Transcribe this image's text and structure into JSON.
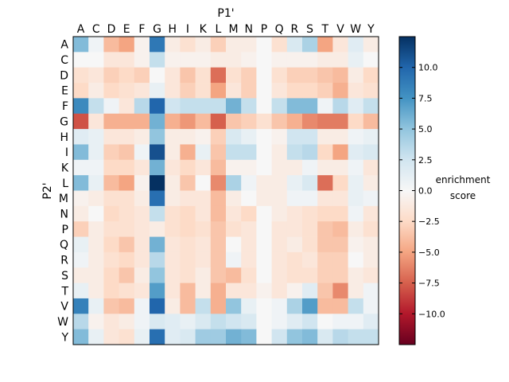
{
  "chart_data": {
    "type": "heatmap",
    "title": "",
    "xlabel": "P1'",
    "ylabel": "P2'",
    "x_categories": [
      "A",
      "C",
      "D",
      "E",
      "F",
      "G",
      "H",
      "I",
      "K",
      "L",
      "M",
      "N",
      "P",
      "Q",
      "R",
      "S",
      "T",
      "V",
      "W",
      "Y"
    ],
    "y_categories": [
      "A",
      "C",
      "D",
      "E",
      "F",
      "G",
      "H",
      "I",
      "K",
      "L",
      "M",
      "N",
      "P",
      "Q",
      "R",
      "S",
      "T",
      "V",
      "W",
      "Y"
    ],
    "colorbar": {
      "label_line1": "enrichment",
      "label_line2": "score",
      "range": [
        -12.5,
        12.5
      ],
      "ticks": [
        10.0,
        7.5,
        5.0,
        2.5,
        0.0,
        -2.5,
        -5.0,
        -7.5,
        -10.0
      ],
      "tick_labels": [
        "10.0",
        "7.5",
        "5.0",
        "2.5",
        "0.0",
        "−2.5",
        "−5.0",
        "−7.5",
        "−10.0"
      ],
      "colormap": "RdBu"
    },
    "values": [
      [
        5.5,
        0.5,
        -4.0,
        -5.0,
        -0.5,
        9.0,
        -1.0,
        -2.0,
        -1.0,
        -3.0,
        -1.0,
        -1.0,
        0.0,
        -2.0,
        2.0,
        4.0,
        -5.0,
        -1.5,
        1.5,
        -1.0
      ],
      [
        0.0,
        0.0,
        -1.5,
        -1.5,
        -0.5,
        3.0,
        -0.5,
        -0.5,
        -0.5,
        -1.0,
        -1.0,
        -0.5,
        0.0,
        -0.5,
        -0.5,
        -0.5,
        -1.0,
        -1.0,
        1.0,
        0.0
      ],
      [
        -2.0,
        -1.5,
        -3.0,
        -2.5,
        -3.0,
        0.0,
        -1.5,
        -3.5,
        -2.0,
        -7.0,
        -2.0,
        -3.0,
        0.0,
        -2.0,
        -3.0,
        -3.0,
        -3.5,
        -4.0,
        -1.0,
        -2.5
      ],
      [
        -2.5,
        -1.0,
        -2.5,
        -2.0,
        -1.5,
        1.0,
        -1.5,
        -3.0,
        -2.0,
        -5.0,
        -1.5,
        -3.0,
        0.0,
        -1.5,
        -2.5,
        -2.5,
        -3.0,
        -4.5,
        -1.5,
        -2.0
      ],
      [
        8.0,
        3.0,
        0.5,
        -1.5,
        3.5,
        10.0,
        2.5,
        3.0,
        3.0,
        3.0,
        6.0,
        3.0,
        0.0,
        3.0,
        5.5,
        5.5,
        0.5,
        3.5,
        1.5,
        3.0
      ],
      [
        -8.0,
        -1.5,
        -4.5,
        -4.5,
        -4.5,
        6.0,
        -4.5,
        -5.5,
        -4.0,
        -7.5,
        -3.5,
        -3.0,
        -2.0,
        -3.5,
        -4.5,
        -6.0,
        -6.5,
        -6.5,
        -2.5,
        -4.0
      ],
      [
        1.5,
        1.0,
        -1.5,
        -1.5,
        -1.0,
        5.0,
        -1.0,
        -1.0,
        -0.5,
        -3.0,
        2.0,
        1.0,
        0.0,
        -0.5,
        2.5,
        2.5,
        -1.0,
        -1.0,
        0.5,
        1.0
      ],
      [
        5.5,
        1.0,
        -3.0,
        -3.5,
        0.5,
        11.0,
        -1.0,
        -4.5,
        1.0,
        -3.5,
        3.0,
        3.0,
        0.0,
        -1.0,
        3.0,
        3.5,
        -2.5,
        -5.0,
        1.5,
        2.0
      ],
      [
        0.5,
        0.5,
        -2.5,
        -2.5,
        -1.5,
        6.0,
        -1.5,
        -2.5,
        -1.5,
        -4.0,
        -0.5,
        -0.5,
        0.0,
        -1.0,
        -1.0,
        0.5,
        -1.0,
        -1.0,
        0.5,
        -1.5
      ],
      [
        5.5,
        1.0,
        -4.0,
        -5.0,
        -0.5,
        12.5,
        -1.0,
        -3.5,
        0.0,
        -6.0,
        4.0,
        0.5,
        -1.0,
        -1.0,
        1.0,
        2.0,
        -7.0,
        -2.5,
        1.0,
        -1.0
      ],
      [
        -0.5,
        -1.0,
        -2.0,
        -2.0,
        -1.0,
        9.5,
        -1.0,
        -1.5,
        -1.5,
        -4.0,
        -1.0,
        0.0,
        -1.0,
        -1.0,
        0.5,
        0.5,
        -1.5,
        -1.5,
        1.0,
        0.5
      ],
      [
        -1.0,
        0.0,
        -2.5,
        -2.0,
        -1.5,
        3.0,
        -2.0,
        -2.5,
        -1.5,
        -4.0,
        -1.5,
        -2.5,
        0.0,
        -1.0,
        -1.5,
        -2.0,
        -2.5,
        -2.5,
        0.5,
        -1.5
      ],
      [
        -3.0,
        -1.0,
        -2.0,
        -2.0,
        -1.5,
        -1.0,
        -2.0,
        -2.5,
        -2.0,
        -3.5,
        -2.0,
        -1.5,
        0.0,
        -1.5,
        -1.5,
        -2.0,
        -3.5,
        -4.0,
        -1.0,
        -2.0
      ],
      [
        1.0,
        -1.0,
        -2.5,
        -3.5,
        -1.5,
        6.0,
        -1.5,
        -2.0,
        -1.5,
        -3.5,
        0.0,
        -1.5,
        0.0,
        -1.5,
        -1.0,
        -2.0,
        -3.5,
        -3.5,
        -0.5,
        -1.0
      ],
      [
        0.5,
        -1.0,
        -2.0,
        -2.5,
        -1.5,
        3.5,
        -1.5,
        -2.0,
        -1.5,
        -3.5,
        0.5,
        -1.5,
        0.0,
        -1.5,
        -2.0,
        -1.5,
        -3.0,
        -3.0,
        0.0,
        -1.0
      ],
      [
        -1.0,
        -1.0,
        -2.5,
        -3.5,
        -1.0,
        5.0,
        -1.5,
        -2.0,
        -1.0,
        -3.5,
        -4.0,
        -2.0,
        0.0,
        -1.5,
        -2.0,
        -2.0,
        -3.0,
        -3.0,
        -1.0,
        -1.5
      ],
      [
        1.0,
        -1.0,
        -2.5,
        -2.0,
        -1.5,
        7.0,
        -1.5,
        -4.0,
        -1.0,
        -4.5,
        -1.5,
        -1.5,
        -0.5,
        -1.5,
        -0.5,
        1.5,
        -3.5,
        -6.0,
        -1.0,
        0.5
      ],
      [
        8.5,
        1.0,
        -3.5,
        -4.0,
        0.5,
        10.0,
        -1.0,
        -4.0,
        3.0,
        -4.5,
        5.0,
        1.0,
        0.0,
        0.5,
        4.0,
        7.0,
        -4.0,
        -4.0,
        3.0,
        0.5
      ],
      [
        3.5,
        -0.5,
        -1.5,
        -1.0,
        0.5,
        2.0,
        1.5,
        1.0,
        2.0,
        3.0,
        2.5,
        2.0,
        0.0,
        0.5,
        1.5,
        2.5,
        0.0,
        0.5,
        0.5,
        1.5
      ],
      [
        5.5,
        1.0,
        -1.5,
        -2.0,
        1.0,
        9.5,
        1.5,
        2.0,
        4.5,
        4.5,
        6.0,
        5.5,
        0.0,
        2.5,
        5.0,
        5.5,
        2.0,
        3.5,
        3.0,
        3.0
      ]
    ]
  }
}
